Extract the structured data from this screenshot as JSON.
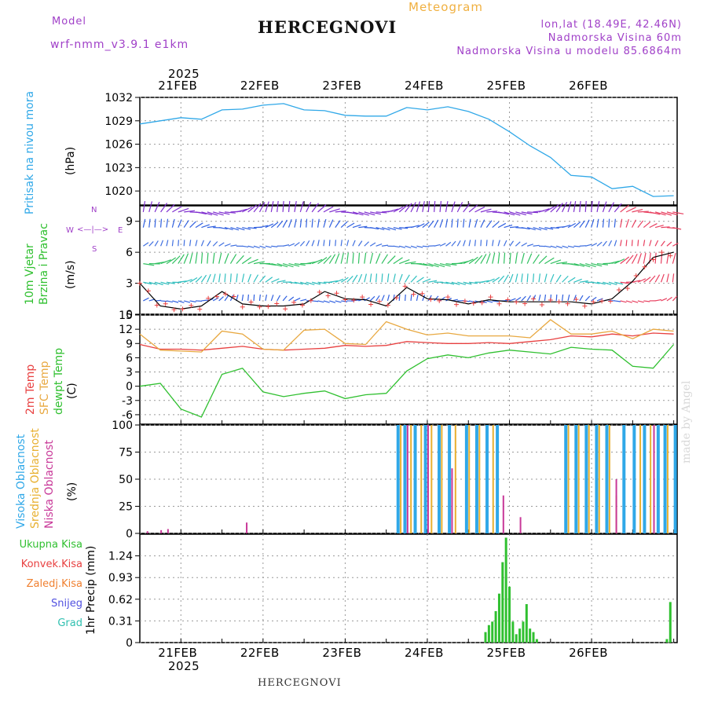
{
  "header": {
    "model_label": "Model",
    "model_name": "wrf-nmm_v3.9.1 e1km",
    "station": "HERCEGNOVI",
    "meteogram": "Meteogram",
    "lonlat": "lon,lat (18.49E, 42.46N)",
    "elevation": "Nadmorska Visina 60m",
    "model_elevation": "Nadmorska Visina u modelu 85.6864m"
  },
  "axis": {
    "year_top": "2025",
    "year_bottom": "2025",
    "dates": [
      "21FEB",
      "22FEB",
      "23FEB",
      "24FEB",
      "25FEB",
      "26FEB"
    ]
  },
  "footer": "HERCEGNOVI",
  "credit": "made by Angel",
  "panels": {
    "pressure": {
      "ylabel": "Pritisak na nivou mora",
      "unit": "(hPa)"
    },
    "wind": {
      "ylabel1": "10m Vjetar",
      "ylabel2": "Brzina i Pravac",
      "unit": "(m/s)",
      "compass_w": "W",
      "compass_e": "E",
      "compass_n": "N",
      "compass_s": "S"
    },
    "temp": {
      "label1": "2m Temp",
      "label2": "SFC Temp",
      "label3": "dewpt Temp",
      "unit": "(C)"
    },
    "cloud": {
      "label1": "Visoka Oblacnost",
      "label2": "Srednja Oblacnost",
      "label3": "Niska Oblacnost",
      "unit": "(%)"
    },
    "precip": {
      "unit": "1hr Precip (mm)",
      "legend": [
        "Ukupna Kisa",
        "Konvek.Kisa",
        "Zaledj.Kisa",
        "Snijeg",
        "Grad"
      ]
    }
  },
  "colors": {
    "pressure": "#30a8e8",
    "t2m": "#e84040",
    "sfc": "#e8a840",
    "dew": "#30c030",
    "high_cloud": "#30a8e8",
    "mid_cloud": "#e8b030",
    "low_cloud": "#c83898",
    "precip": "#30c030",
    "legend": [
      "#30c030",
      "#e84040",
      "#f08030",
      "#5050e0",
      "#30c0b0"
    ]
  },
  "chart_data": [
    {
      "type": "line",
      "ylabel": "Pritisak na nivou mora (hPa)",
      "ylim": [
        1018.2,
        1032
      ],
      "yticks": [
        1020,
        1023,
        1026,
        1029,
        1032
      ],
      "x_hours": [
        0,
        6,
        12,
        18,
        24,
        30,
        36,
        42,
        48,
        54,
        60,
        66,
        72,
        78,
        84,
        90,
        96,
        102,
        108,
        114,
        120,
        126,
        132,
        138,
        144,
        150,
        156
      ],
      "values": [
        1028.6,
        1029.0,
        1029.4,
        1029.2,
        1030.4,
        1030.5,
        1031.0,
        1031.2,
        1030.4,
        1030.3,
        1029.7,
        1029.6,
        1029.6,
        1030.7,
        1030.4,
        1030.8,
        1030.2,
        1029.2,
        1027.6,
        1025.8,
        1024.3,
        1022.0,
        1021.8,
        1020.3,
        1020.6,
        1019.3,
        1019.4
      ],
      "grid": true
    },
    {
      "type": "line",
      "ylabel": "10m Vjetar Brzina i Pravac (m/s)",
      "ylim": [
        0,
        10.5
      ],
      "yticks": [
        0,
        3,
        6,
        9
      ],
      "x_hours": [
        0,
        6,
        12,
        18,
        24,
        30,
        36,
        42,
        48,
        54,
        60,
        66,
        72,
        78,
        84,
        90,
        96,
        102,
        108,
        114,
        120,
        126,
        132,
        138,
        144,
        150,
        156
      ],
      "values": [
        3.0,
        0.8,
        0.5,
        0.8,
        2.2,
        1.0,
        0.8,
        0.8,
        1.0,
        2.2,
        1.5,
        1.4,
        0.8,
        2.6,
        1.5,
        1.4,
        1.0,
        1.4,
        1.2,
        1.2,
        1.2,
        1.2,
        1.0,
        1.5,
        3.2,
        5.5,
        6.0
      ],
      "grid": true
    },
    {
      "type": "line",
      "ylabel": "Temp (C)",
      "ylim": [
        -8,
        15
      ],
      "yticks": [
        -6,
        -3,
        0,
        3,
        6,
        9,
        12,
        15
      ],
      "x_hours": [
        0,
        6,
        12,
        18,
        24,
        30,
        36,
        42,
        48,
        54,
        60,
        66,
        72,
        78,
        84,
        90,
        96,
        102,
        108,
        114,
        120,
        126,
        132,
        138,
        144,
        150,
        156
      ],
      "series": [
        {
          "name": "2m Temp",
          "values": [
            8.8,
            7.8,
            7.8,
            7.6,
            8.0,
            8.4,
            7.8,
            7.6,
            7.8,
            8.0,
            8.6,
            8.4,
            8.6,
            9.4,
            9.2,
            9.0,
            9.0,
            9.2,
            9.0,
            9.4,
            9.8,
            10.6,
            10.4,
            11.0,
            10.6,
            11.2,
            11.0
          ]
        },
        {
          "name": "SFC Temp",
          "values": [
            11.0,
            7.6,
            7.4,
            7.2,
            11.6,
            11.0,
            7.8,
            7.6,
            11.8,
            12.0,
            9.0,
            8.8,
            13.6,
            12.0,
            10.8,
            11.2,
            10.6,
            10.6,
            10.6,
            10.2,
            14.0,
            11.0,
            11.0,
            11.6,
            10.0,
            12.0,
            11.6
          ]
        },
        {
          "name": "dewpt Temp",
          "values": [
            0.0,
            0.6,
            -4.8,
            -6.5,
            2.5,
            3.8,
            -1.2,
            -2.2,
            -1.5,
            -1.0,
            -2.6,
            -1.8,
            -1.5,
            3.2,
            5.8,
            6.6,
            6.0,
            7.0,
            7.6,
            7.2,
            6.8,
            8.2,
            7.8,
            7.6,
            4.2,
            3.8,
            8.8
          ]
        }
      ],
      "grid": true
    },
    {
      "type": "bar",
      "ylabel": "Oblacnost (%)",
      "ylim": [
        0,
        100
      ],
      "yticks": [
        0,
        25,
        50,
        75,
        100
      ],
      "series": [
        {
          "name": "Visoka Oblacnost",
          "x_hours": [
            75,
            77,
            80,
            83,
            87,
            90,
            95,
            98,
            101,
            104,
            124,
            127,
            130,
            133,
            136,
            141,
            144,
            147,
            151,
            153,
            156
          ],
          "values": [
            100,
            100,
            100,
            100,
            100,
            100,
            100,
            100,
            100,
            100,
            100,
            100,
            100,
            100,
            100,
            100,
            100,
            100,
            100,
            100,
            100
          ]
        },
        {
          "name": "Srednja Oblacnost",
          "x_hours": [
            76,
            79,
            82,
            85,
            88,
            92,
            96,
            99,
            103,
            125,
            128,
            131,
            134,
            137,
            139,
            146,
            149,
            154
          ],
          "values": [
            100,
            100,
            100,
            100,
            100,
            100,
            100,
            100,
            100,
            100,
            100,
            100,
            100,
            100,
            35,
            100,
            100,
            100
          ]
        },
        {
          "name": "Niska Oblacnost",
          "x_hours": [
            2,
            6,
            8,
            31,
            78,
            84,
            91,
            106,
            111,
            139,
            150
          ],
          "values": [
            2,
            3,
            4,
            10,
            100,
            100,
            60,
            35,
            15,
            50,
            100
          ]
        }
      ],
      "grid": true
    },
    {
      "type": "bar",
      "ylabel": "1hr Precip (mm)",
      "ylim": [
        0,
        1.55
      ],
      "yticks": [
        0,
        0.31,
        0.62,
        0.93,
        1.24
      ],
      "series": [
        {
          "name": "Ukupna Kisa",
          "x_hours": [
            101,
            102,
            103,
            104,
            105,
            106,
            107,
            108,
            109,
            110,
            111,
            112,
            113,
            114,
            115,
            116,
            154,
            155
          ],
          "values": [
            0.15,
            0.25,
            0.3,
            0.45,
            0.7,
            1.15,
            1.5,
            0.8,
            0.3,
            0.12,
            0.2,
            0.3,
            0.55,
            0.2,
            0.15,
            0.05,
            0.05,
            0.58
          ]
        }
      ],
      "grid": true
    }
  ]
}
